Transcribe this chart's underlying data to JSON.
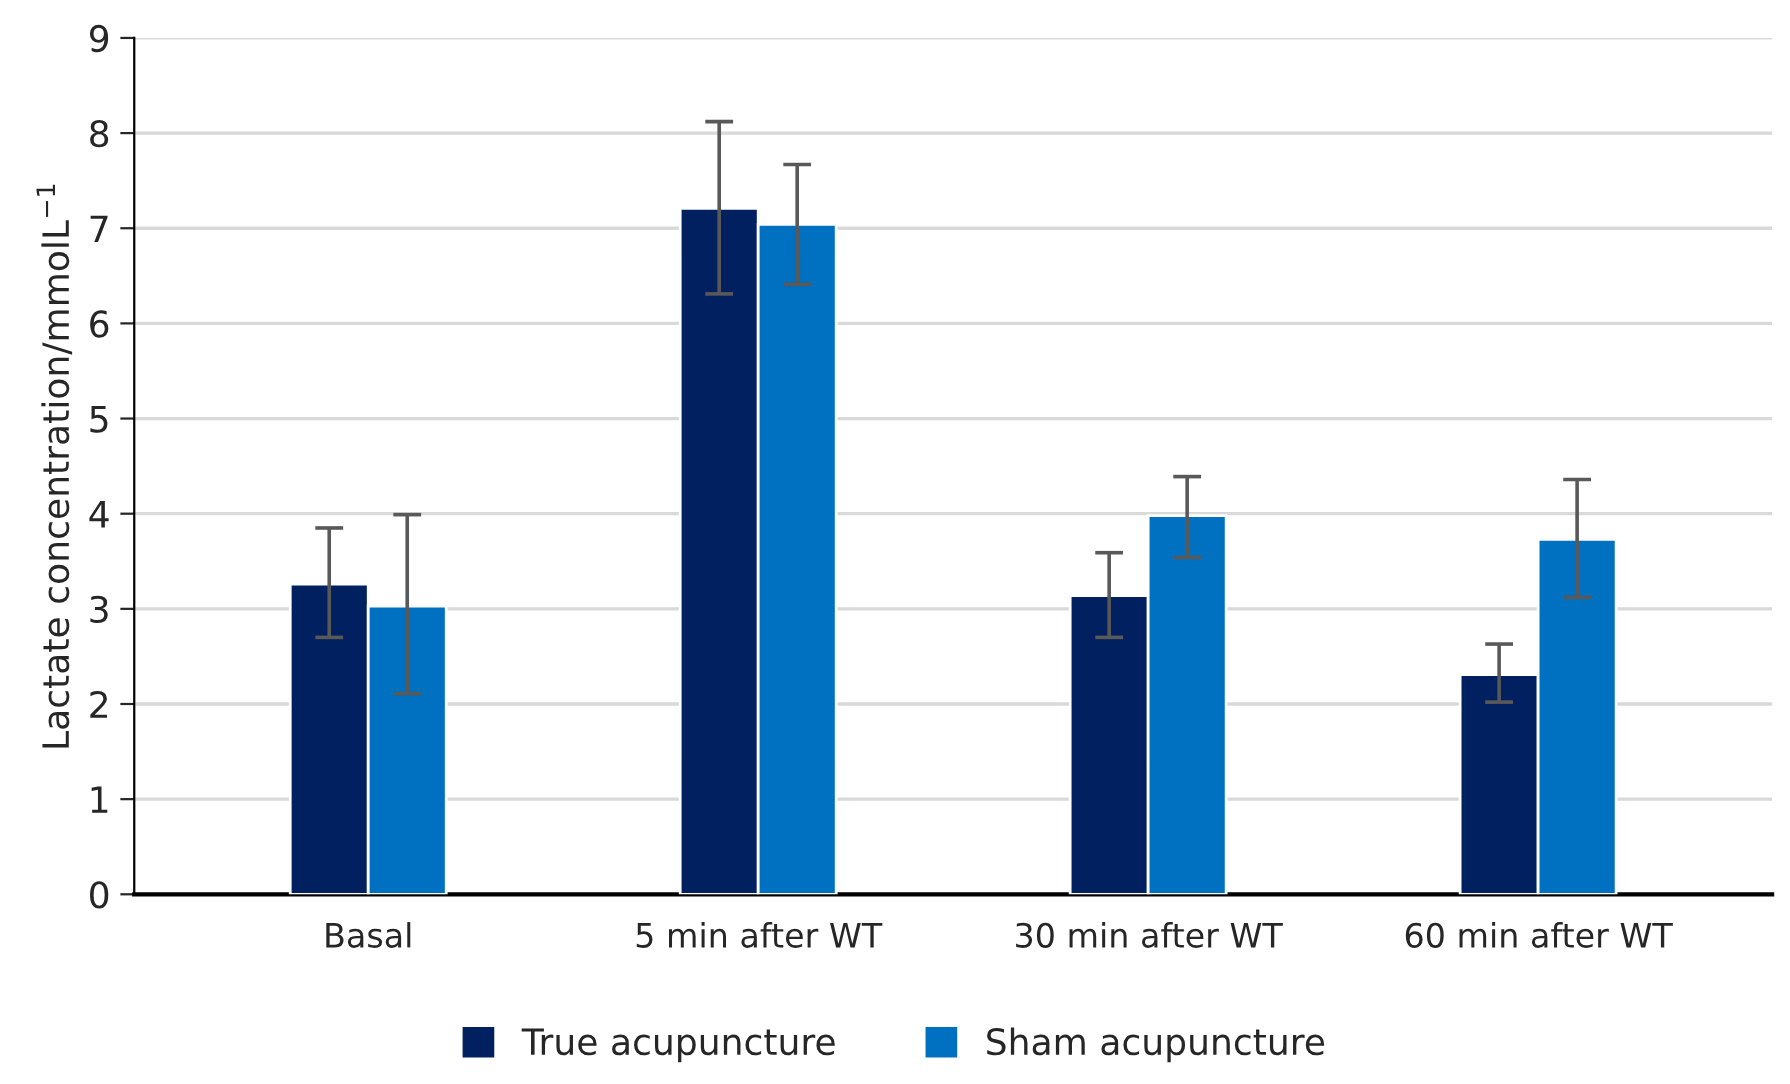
{
  "chart_data": {
    "type": "bar",
    "ylabel": "Lactate concentration/mmolL$^{−1}$",
    "categories": [
      "Basal",
      "5 min after WT",
      "30 min after WT",
      "60 min after WT"
    ],
    "series": [
      {
        "name": "True acupuncture",
        "color": "#002060",
        "values": [
          3.26,
          7.21,
          3.14,
          2.31
        ],
        "errors": [
          [
            2.7,
            3.85
          ],
          [
            6.31,
            8.12
          ],
          [
            2.7,
            3.59
          ],
          [
            2.02,
            2.63
          ]
        ]
      },
      {
        "name": "Sham acupuncture",
        "color": "#0070c0",
        "values": [
          3.03,
          7.04,
          3.98,
          3.73
        ],
        "errors": [
          [
            2.11,
            3.99
          ],
          [
            6.41,
            7.67
          ],
          [
            3.54,
            4.39
          ],
          [
            3.12,
            4.36
          ]
        ]
      }
    ],
    "ylim": [
      0,
      9
    ],
    "yticks": [
      0,
      1,
      2,
      3,
      4,
      5,
      6,
      7,
      8,
      9
    ],
    "grid": "y",
    "legend": "bottom"
  }
}
